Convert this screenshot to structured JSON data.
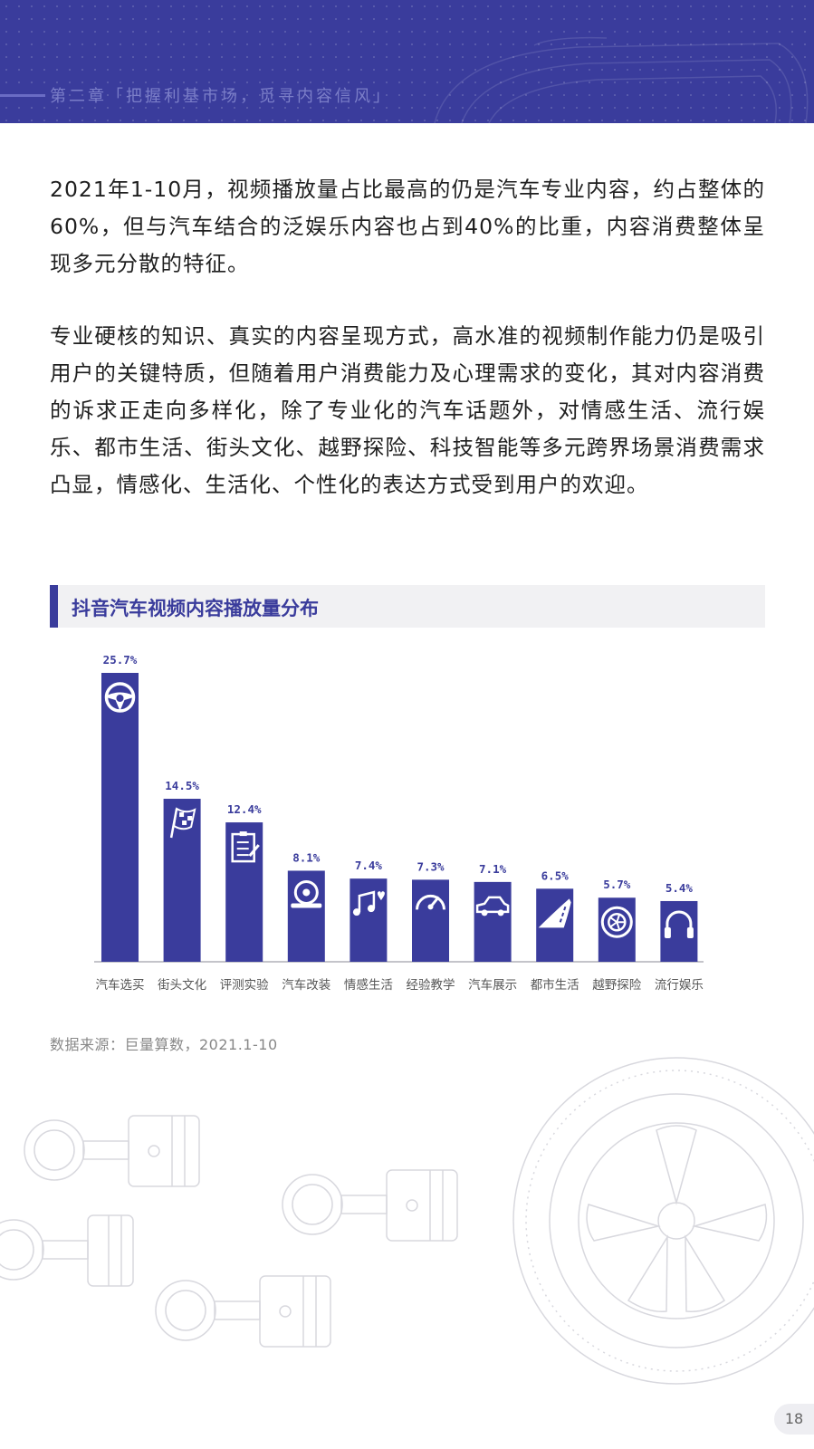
{
  "header": {
    "chapter_title": "第二章「把握利基市场，觅寻内容信风」"
  },
  "body": {
    "paragraph_1": "2021年1-10月，视频播放量占比最高的仍是汽车专业内容，约占整体的60%，但与汽车结合的泛娱乐内容也占到40%的比重，内容消费整体呈现多元分散的特征。",
    "paragraph_2": "专业硬核的知识、真实的内容呈现方式，高水准的视频制作能力仍是吸引用户的关键特质，但随着用户消费能力及心理需求的变化，其对内容消费的诉求正走向多样化，除了专业化的汽车话题外，对情感生活、流行娱乐、都市生活、街头文化、越野探险、科技智能等多元跨界场景消费需求凸显，情感化、生活化、个性化的表达方式受到用户的欢迎。"
  },
  "chart_title": "抖音汽车视频内容播放量分布",
  "chart_data": {
    "type": "bar",
    "title": "抖音汽车视频内容播放量分布",
    "categories": [
      "汽车选买",
      "街头文化",
      "评测实验",
      "汽车改装",
      "情感生活",
      "经验教学",
      "汽车展示",
      "都市生活",
      "越野探险",
      "流行娱乐"
    ],
    "values": [
      25.7,
      14.5,
      12.4,
      8.1,
      7.4,
      7.3,
      7.1,
      6.5,
      5.7,
      5.4
    ],
    "value_labels": [
      "25.7%",
      "14.5%",
      "12.4%",
      "8.1%",
      "7.4%",
      "7.3%",
      "7.1%",
      "6.5%",
      "5.7%",
      "5.4%"
    ],
    "icons": [
      "steering-wheel-icon",
      "checkered-flag-icon",
      "clipboard-icon",
      "wheel-wrench-icon",
      "music-heart-icon",
      "speedometer-icon",
      "car-icon",
      "road-icon",
      "tire-icon",
      "headphones-icon"
    ],
    "xlabel": "",
    "ylabel": "",
    "ylim": [
      0,
      25.7
    ],
    "grid": false,
    "bar_color": "#3a3c9c"
  },
  "source": "数据来源：巨量算数，2021.1-10",
  "page_number": "18",
  "colors": {
    "accent": "#3a3c9c",
    "header_bg": "#3a3c9c",
    "title_bar_bg": "#f1f1f3",
    "deco_line": "#d8d8de"
  }
}
